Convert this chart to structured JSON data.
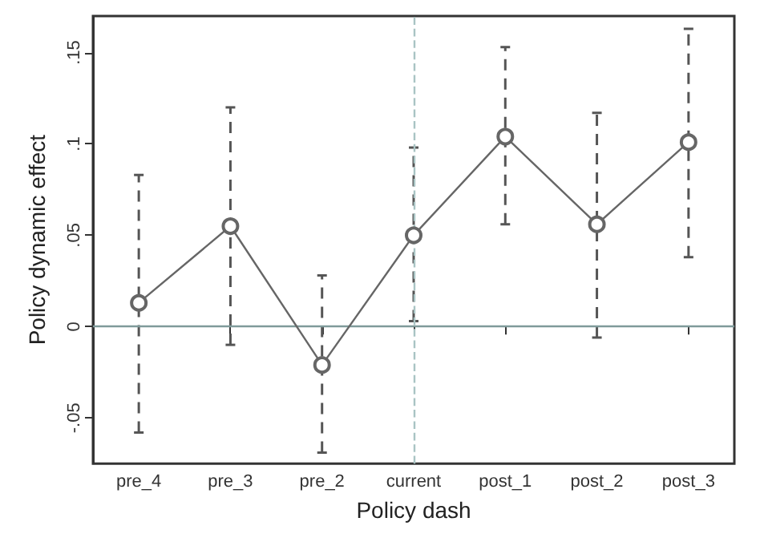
{
  "chart_data": {
    "type": "line",
    "xlabel": "Policy dash",
    "ylabel": "Policy dynamic effect",
    "categories": [
      "pre_4",
      "pre_3",
      "pre_2",
      "current",
      "post_1",
      "post_2",
      "post_3"
    ],
    "series": [
      {
        "color": "#666666",
        "values": [
          0.013,
          0.055,
          -0.021,
          0.05,
          0.104,
          0.056,
          0.101
        ],
        "errors": [
          [
            -0.058,
            0.083
          ],
          [
            -0.01,
            0.12
          ],
          [
            -0.069,
            0.028
          ],
          [
            0.003,
            0.098
          ],
          [
            0.056,
            0.153
          ],
          [
            -0.006,
            0.117
          ],
          [
            0.038,
            0.163
          ]
        ]
      }
    ],
    "ylim": [
      -0.075,
      0.17
    ],
    "yticks": [
      {
        "value": -0.05,
        "label": "-.05"
      },
      0,
      {
        "value": 0.05,
        "label": ".05"
      },
      {
        "value": 0.1,
        "label": ".1"
      },
      {
        "value": 0.15,
        "label": ".15"
      }
    ],
    "ref_lines": [
      {
        "axis": "y",
        "value": 0,
        "color": "#7f9a9a",
        "line_style": "solid"
      },
      {
        "axis": "x",
        "value": "current",
        "color": "#a9c4c4",
        "line_style": "dashed"
      }
    ],
    "marker": "circle",
    "line_style": "solid",
    "grid": false
  }
}
